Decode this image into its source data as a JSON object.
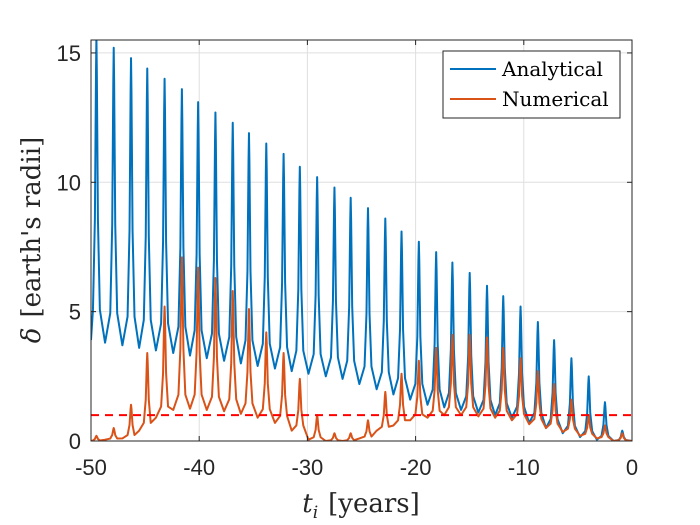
{
  "chart_data": {
    "type": "line",
    "xlabel_symbol": "t",
    "xlabel_subscript": "i",
    "xlabel_unit": "[years]",
    "ylabel_symbol": "δ",
    "ylabel_unit": "[earth's radii]",
    "xlim": [
      -50,
      0
    ],
    "ylim": [
      0,
      15.5
    ],
    "xticks": [
      -50,
      -40,
      -30,
      -20,
      -10,
      0
    ],
    "yticks": [
      0,
      5,
      10,
      15
    ],
    "xtick_labels": [
      "-50",
      "-40",
      "-30",
      "-20",
      "-10",
      "0"
    ],
    "ytick_labels": [
      "0",
      "5",
      "10",
      "15"
    ],
    "grid": true,
    "legend_position": "top-right",
    "colors": {
      "analytical": "#0072BD",
      "numerical": "#D95319",
      "threshold": "#FF0000"
    },
    "analytical_peaks": {
      "t": [
        -49.5,
        -47.9,
        -46.3,
        -44.8,
        -43.2,
        -41.6,
        -40.1,
        -38.5,
        -36.9,
        -35.4,
        -33.8,
        -32.2,
        -30.7,
        -29.1,
        -27.5,
        -26.0,
        -24.4,
        -22.8,
        -21.3,
        -19.7,
        -18.1,
        -16.6,
        -15.0,
        -13.4,
        -11.9,
        -10.3,
        -8.7,
        -7.2,
        -5.6,
        -4.0,
        -2.5,
        -0.9
      ],
      "peak": [
        15.6,
        15.2,
        14.8,
        14.4,
        14.0,
        13.6,
        13.1,
        12.7,
        12.3,
        11.9,
        11.5,
        11.1,
        10.6,
        10.2,
        9.8,
        9.4,
        9.0,
        8.6,
        8.1,
        7.7,
        7.3,
        6.9,
        6.5,
        6.0,
        5.6,
        5.2,
        4.6,
        3.9,
        3.2,
        2.5,
        1.5,
        0.4
      ],
      "trough": [
        3.9,
        3.8,
        3.7,
        3.6,
        3.5,
        3.4,
        3.3,
        3.2,
        3.1,
        3.0,
        2.9,
        2.8,
        2.7,
        2.6,
        2.5,
        2.4,
        2.2,
        2.0,
        1.8,
        1.6,
        1.4,
        1.3,
        1.2,
        1.1,
        1.0,
        0.9,
        0.7,
        0.5,
        0.3,
        0.15,
        0.05,
        0.0
      ]
    },
    "numerical_peaks": {
      "t": [
        -49.5,
        -47.9,
        -46.3,
        -44.8,
        -43.2,
        -41.6,
        -40.1,
        -38.5,
        -36.9,
        -35.4,
        -33.8,
        -32.2,
        -30.7,
        -29.1,
        -27.5,
        -26.0,
        -24.4,
        -22.8,
        -21.3,
        -19.7,
        -18.1,
        -16.6,
        -15.0,
        -13.4,
        -11.9,
        -10.3,
        -8.7,
        -7.2,
        -5.6,
        -4.0,
        -2.5,
        -0.9
      ],
      "peak": [
        0.2,
        0.5,
        1.4,
        3.4,
        5.2,
        7.1,
        6.7,
        6.3,
        5.8,
        5.1,
        4.2,
        3.4,
        2.4,
        1.0,
        0.3,
        0.3,
        0.8,
        1.9,
        2.6,
        3.1,
        3.6,
        4.1,
        4.1,
        4.0,
        3.6,
        3.2,
        2.7,
        2.2,
        1.6,
        1.0,
        0.6,
        0.3
      ],
      "trough": [
        0.0,
        0.05,
        0.1,
        0.4,
        0.9,
        1.2,
        1.25,
        1.2,
        1.15,
        1.05,
        0.9,
        0.7,
        0.4,
        0.05,
        0.0,
        0.0,
        0.1,
        0.4,
        0.6,
        0.8,
        0.9,
        1.0,
        1.0,
        0.95,
        0.9,
        0.8,
        0.65,
        0.5,
        0.35,
        0.2,
        0.1,
        0.0
      ]
    },
    "series": [
      {
        "name": "Analytical",
        "color": "#0072BD"
      },
      {
        "name": "Numerical",
        "color": "#D95319"
      }
    ],
    "threshold_line": {
      "y": 1.0,
      "style": "dashed",
      "color": "#FF0000"
    }
  }
}
